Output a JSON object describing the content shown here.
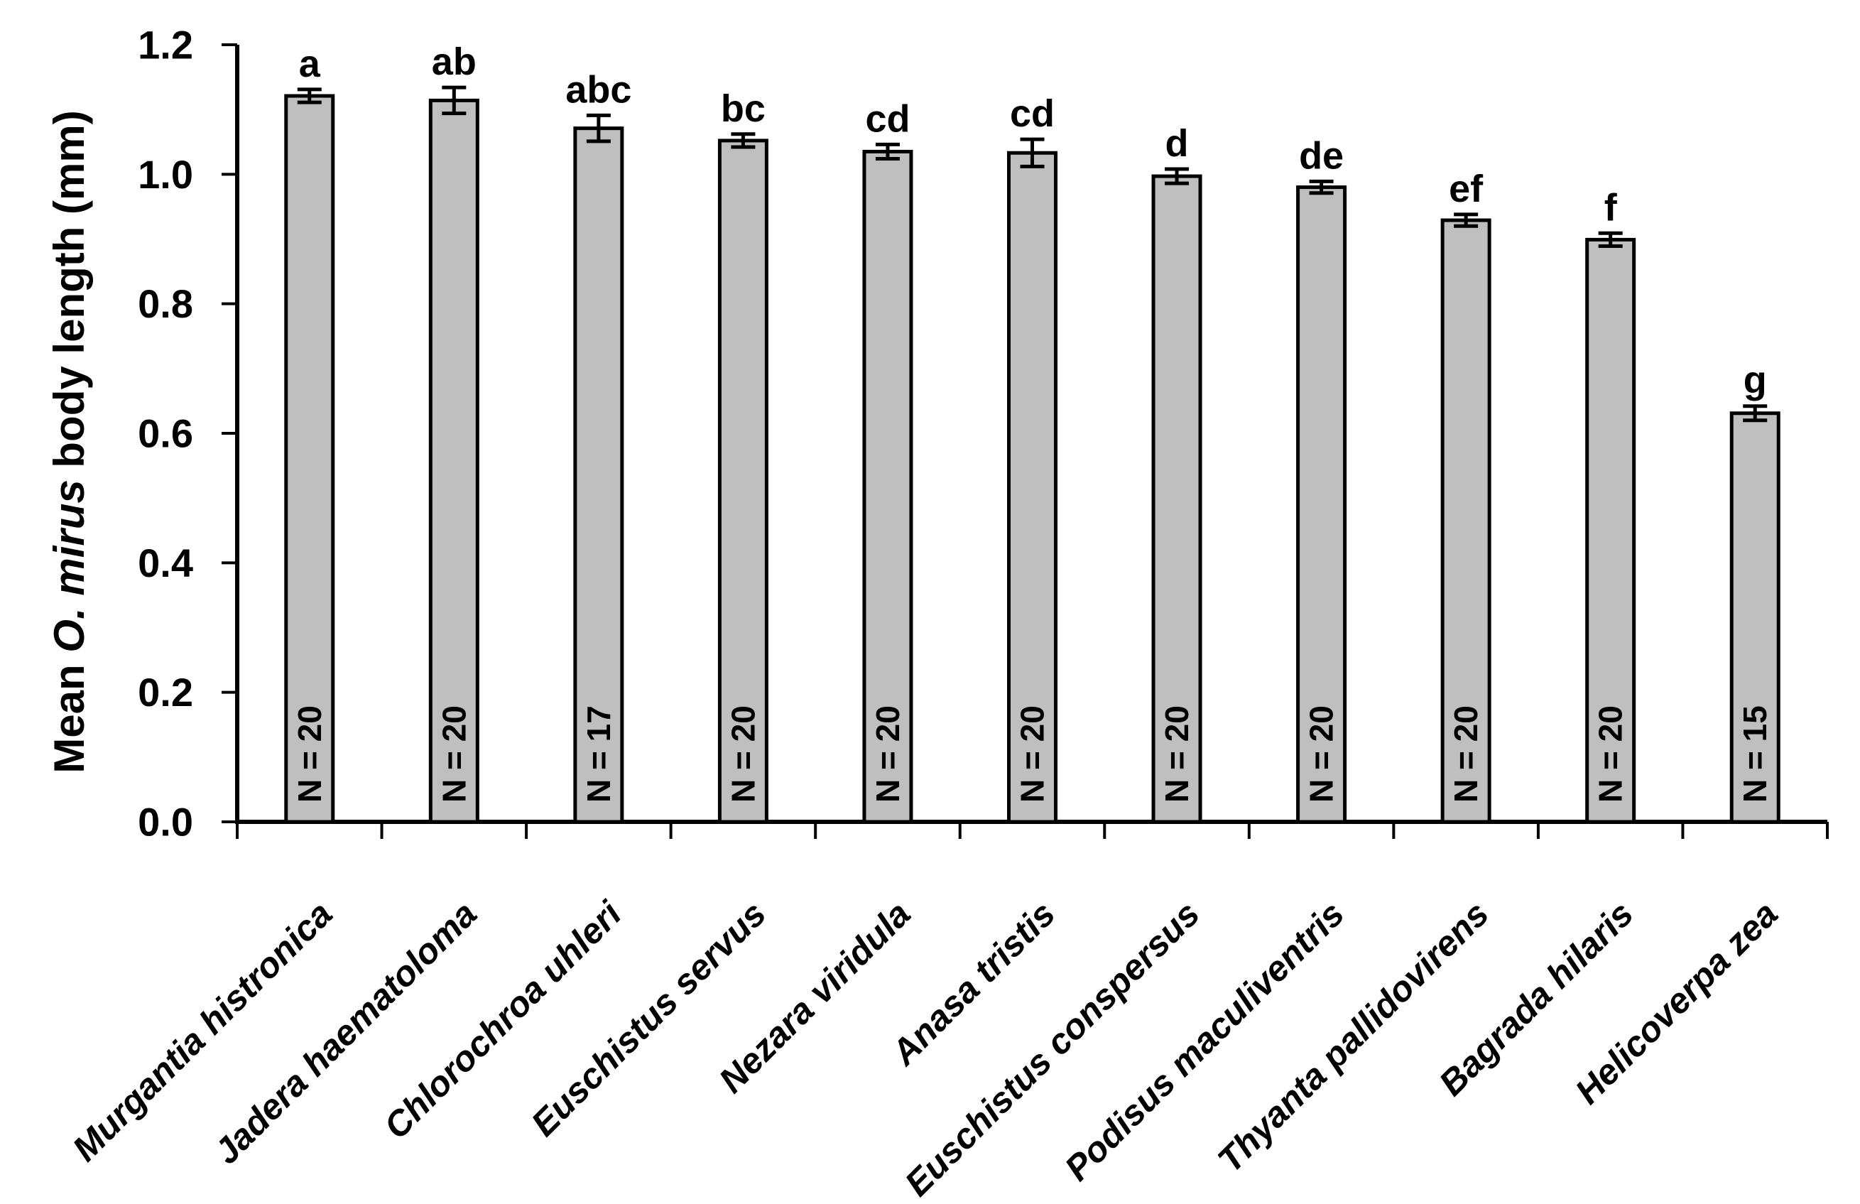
{
  "figure": {
    "background": "#ffffff",
    "text_color": "#000000"
  },
  "chart_data": {
    "type": "bar",
    "title": "",
    "xlabel": "",
    "ylabel": "Mean O. mirus body length (mm)",
    "ylabel_parts": {
      "prefix": "Mean ",
      "italic": "O. mirus",
      "suffix": " body length (mm)"
    },
    "ylim": [
      0,
      1.2
    ],
    "yticks": [
      0,
      0.2,
      0.4,
      0.6,
      0.8,
      1.0,
      1.2
    ],
    "ytick_labels": [
      "0.0",
      "0.2",
      "0.4",
      "0.6",
      "0.8",
      "1.0",
      "1.2"
    ],
    "grid": false,
    "legend": "none",
    "bar_fill": "#bfbfbf",
    "bar_edge": "#000000",
    "categories": [
      "Murgantia histronica",
      "Jadera haematoloma",
      "Chlorochroa uhleri",
      "Euschistus servus",
      "Nezara viridula",
      "Anasa tristis",
      "Euschistus conspersus",
      "Podisus maculiventris",
      "Thyanta pallidovirens",
      "Bagrada hilaris",
      "Helicoverpa zea"
    ],
    "values": [
      1.121,
      1.114,
      1.071,
      1.052,
      1.035,
      1.033,
      0.997,
      0.98,
      0.929,
      0.899,
      0.631
    ],
    "errors": [
      0.01,
      0.02,
      0.02,
      0.01,
      0.011,
      0.021,
      0.011,
      0.009,
      0.009,
      0.01,
      0.011
    ],
    "sig_letters": [
      "a",
      "ab",
      "abc",
      "bc",
      "cd",
      "cd",
      "d",
      "de",
      "ef",
      "f",
      "g"
    ],
    "n_labels": [
      "N = 20",
      "N = 20",
      "N = 17",
      "N = 20",
      "N = 20",
      "N = 20",
      "N = 20",
      "N = 20",
      "N = 20",
      "N = 20",
      "N = 15"
    ]
  }
}
